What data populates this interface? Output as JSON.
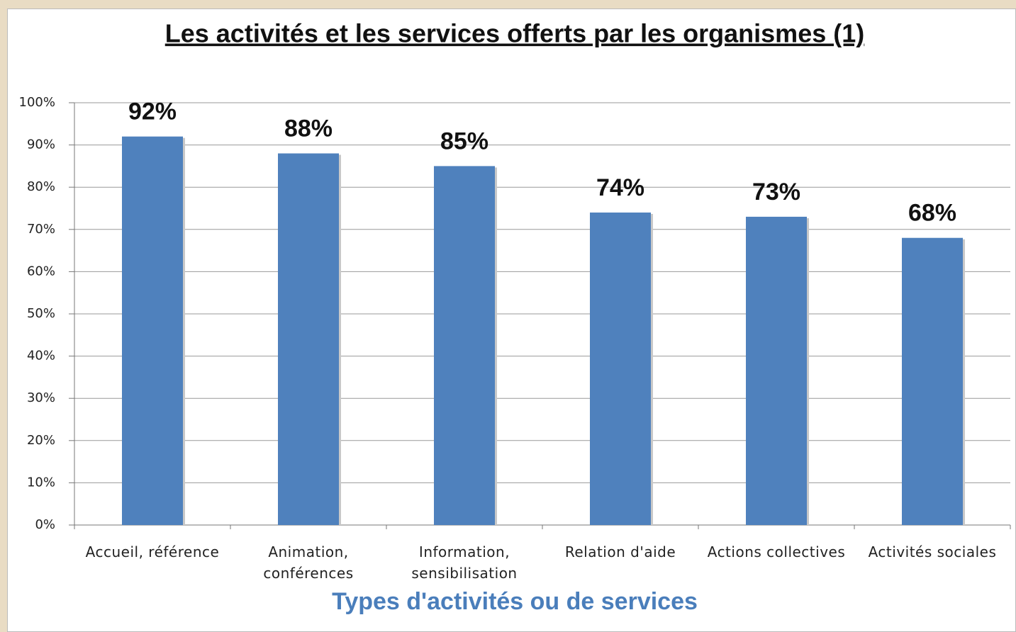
{
  "chart_data": {
    "type": "bar",
    "title": "Les activités et les services offerts par les organismes (1)",
    "x_label": "Types d'activités ou de services",
    "categories": [
      "Accueil, référence",
      "Animation, conférences",
      "Information, sensibilisation",
      "Relation d'aide",
      "Actions collectives",
      "Activités sociales"
    ],
    "values": [
      92,
      88,
      85,
      74,
      73,
      68
    ],
    "value_labels": [
      "92%",
      "88%",
      "85%",
      "74%",
      "73%",
      "68%"
    ],
    "color": "#4f81bd",
    "ylim": [
      0,
      100
    ],
    "yticks": [
      {
        "value": 0,
        "label": "0%"
      },
      {
        "value": 10,
        "label": "10%"
      },
      {
        "value": 20,
        "label": "20%"
      },
      {
        "value": 30,
        "label": "30%"
      },
      {
        "value": 40,
        "label": "40%"
      },
      {
        "value": 50,
        "label": "50%"
      },
      {
        "value": 60,
        "label": "60%"
      },
      {
        "value": 70,
        "label": "70%"
      },
      {
        "value": 80,
        "label": "80%"
      },
      {
        "value": 90,
        "label": "90%"
      },
      {
        "value": 100,
        "label": "100%"
      }
    ],
    "grid": true
  }
}
